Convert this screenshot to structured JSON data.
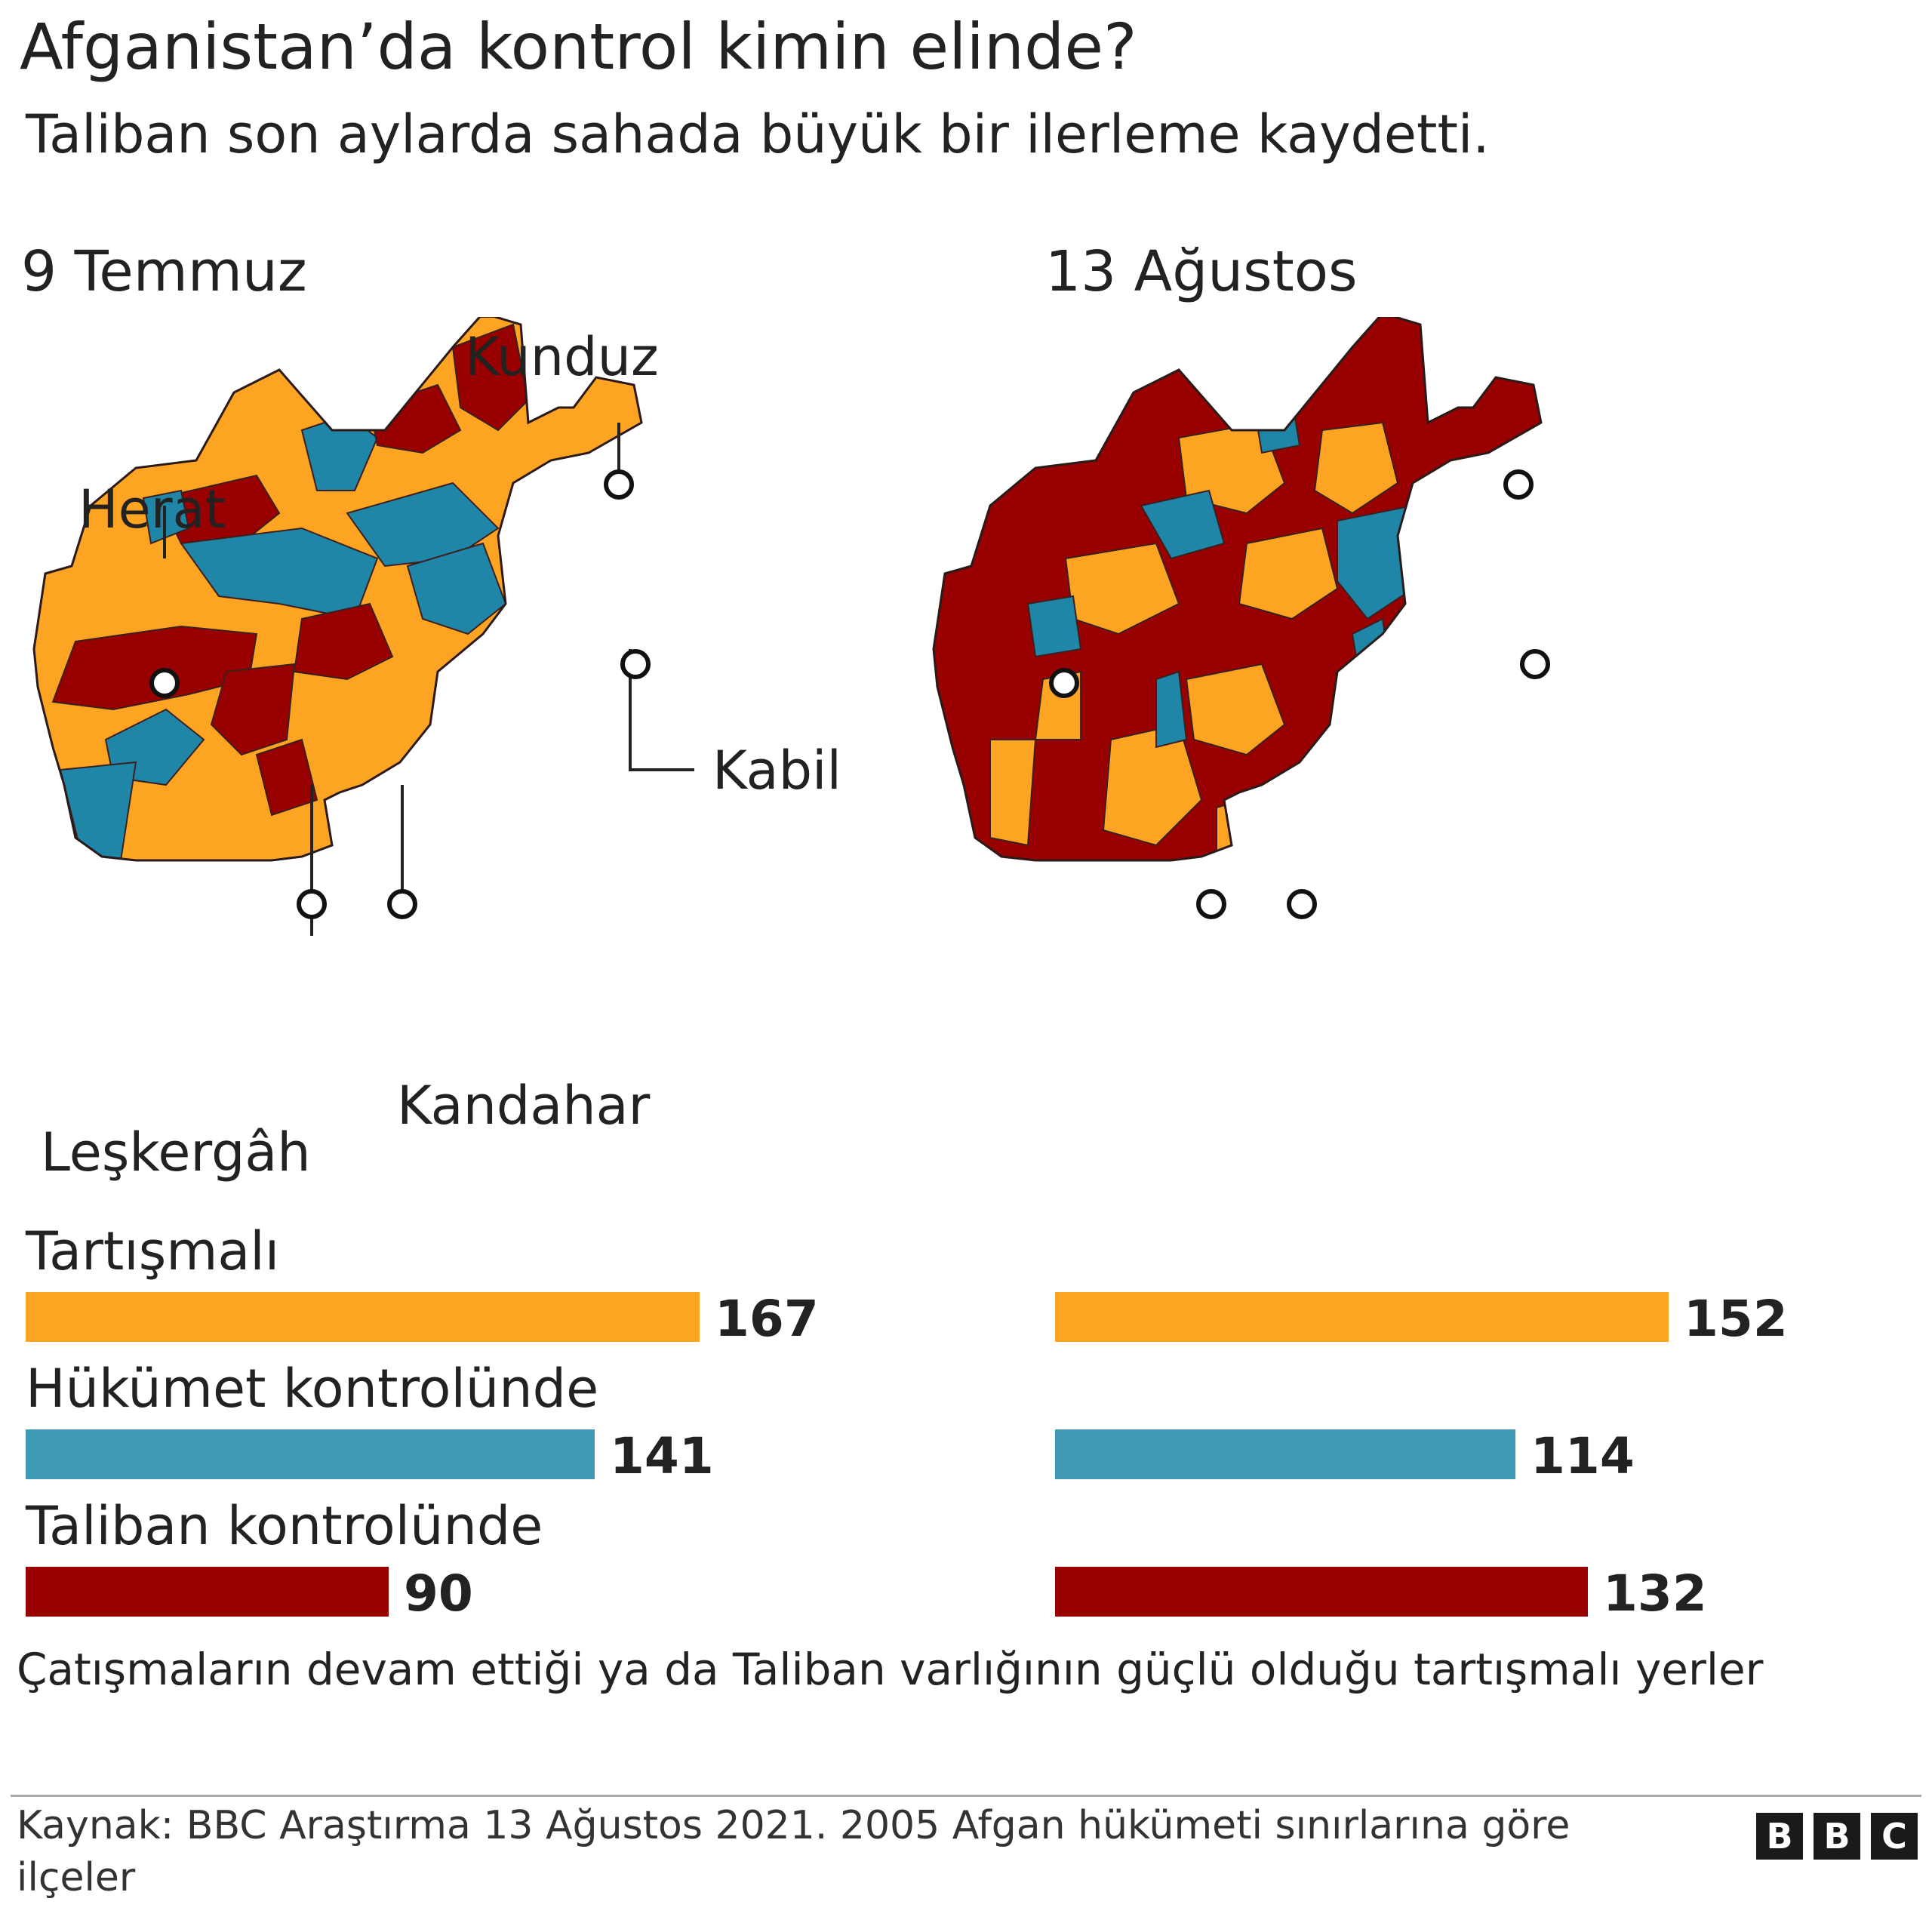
{
  "title": "Afganistan’da kontrol kimin elinde?",
  "subtitle": "Taliban son aylarda sahada büyük bir ilerleme kaydetti.",
  "chart_data": {
    "type": "bar",
    "orientation": "horizontal",
    "panels": [
      {
        "label": "9 Temmuz",
        "values": [
          167,
          141,
          90
        ],
        "city_labels": {
          "kunduz": "Kunduz",
          "herat": "Herat",
          "kabil": "Kabil",
          "leskergah": "Leşkergâh",
          "kandahar": "Kandahar"
        }
      },
      {
        "label": "13 Ağustos",
        "values": [
          152,
          114,
          132
        ]
      }
    ],
    "categories": [
      "Tartışmalı",
      "Hükümet kontrolünde",
      "Taliban kontrolünde"
    ],
    "colors": [
      "#fea423",
      "#3f9ab6",
      "#990000"
    ],
    "map_colors": {
      "contested": "#fea423",
      "government": "#1f86a8",
      "taliban": "#990000"
    }
  },
  "note": "Çatışmaların devam ettiği ya da Taliban varlığının güçlü olduğu tartışmalı yerler",
  "source": "Kaynak: BBC Araştırma 13 Ağustos 2021. 2005 Afgan hükümeti sınırlarına göre ilçeler",
  "logo": [
    "B",
    "B",
    "C"
  ]
}
